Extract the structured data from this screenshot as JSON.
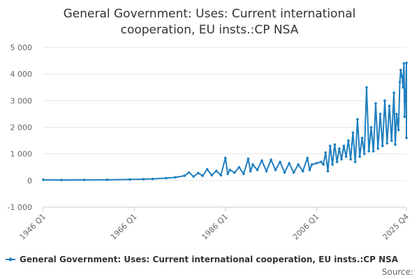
{
  "chart_data": {
    "type": "line",
    "title": [
      "General Government: Uses: Current international",
      "cooperation, EU insts.:CP NSA"
    ],
    "xlabel": "",
    "ylabel": "",
    "ylim": [
      -1000,
      5000
    ],
    "yticks": [
      5000,
      4000,
      3000,
      2000,
      1000,
      0,
      -1000
    ],
    "ytick_labels": [
      "5 000",
      "4 000",
      "3 000",
      "2 000",
      "1 000",
      "0",
      "-1 000"
    ],
    "xtick_labels": [
      "1946 Q1",
      "1966 Q1",
      "1986 Q1",
      "2006 Q1",
      "2025 Q4"
    ],
    "xtick_years": [
      1946.0,
      1966.0,
      1986.0,
      2006.0,
      2025.75
    ],
    "x_start": 1946.0,
    "x_end": 2025.75,
    "series": [
      {
        "name": "General Government: Uses: Current international cooperation, EU insts.:CP NSA",
        "color": "#1f7fbf",
        "points": [
          [
            1946.0,
            30
          ],
          [
            1950.0,
            20
          ],
          [
            1955.0,
            25
          ],
          [
            1960.0,
            30
          ],
          [
            1965.0,
            40
          ],
          [
            1968.0,
            50
          ],
          [
            1970.0,
            60
          ],
          [
            1973.0,
            90
          ],
          [
            1975.0,
            120
          ],
          [
            1977.0,
            180
          ],
          [
            1978.0,
            300
          ],
          [
            1979.0,
            150
          ],
          [
            1980.0,
            280
          ],
          [
            1981.0,
            180
          ],
          [
            1982.0,
            420
          ],
          [
            1983.0,
            200
          ],
          [
            1984.0,
            360
          ],
          [
            1985.0,
            200
          ],
          [
            1986.0,
            850
          ],
          [
            1986.5,
            250
          ],
          [
            1987.0,
            400
          ],
          [
            1988.0,
            300
          ],
          [
            1989.0,
            500
          ],
          [
            1990.0,
            250
          ],
          [
            1991.0,
            820
          ],
          [
            1991.5,
            350
          ],
          [
            1992.0,
            600
          ],
          [
            1993.0,
            400
          ],
          [
            1994.0,
            750
          ],
          [
            1995.0,
            350
          ],
          [
            1996.0,
            780
          ],
          [
            1997.0,
            400
          ],
          [
            1998.0,
            700
          ],
          [
            1999.0,
            300
          ],
          [
            2000.0,
            650
          ],
          [
            2001.0,
            300
          ],
          [
            2002.0,
            600
          ],
          [
            2003.0,
            350
          ],
          [
            2004.0,
            850
          ],
          [
            2004.5,
            400
          ],
          [
            2005.0,
            600
          ],
          [
            2006.0,
            650
          ],
          [
            2007.0,
            700
          ],
          [
            2007.5,
            600
          ],
          [
            2008.0,
            1050
          ],
          [
            2008.5,
            350
          ],
          [
            2009.0,
            1300
          ],
          [
            2009.5,
            600
          ],
          [
            2010.0,
            1350
          ],
          [
            2010.5,
            700
          ],
          [
            2011.0,
            1200
          ],
          [
            2011.5,
            800
          ],
          [
            2012.0,
            1300
          ],
          [
            2012.5,
            900
          ],
          [
            2013.0,
            1500
          ],
          [
            2013.5,
            800
          ],
          [
            2014.0,
            1800
          ],
          [
            2014.5,
            700
          ],
          [
            2015.0,
            2300
          ],
          [
            2015.5,
            900
          ],
          [
            2016.0,
            1600
          ],
          [
            2016.5,
            1000
          ],
          [
            2017.0,
            3500
          ],
          [
            2017.5,
            1100
          ],
          [
            2018.0,
            2000
          ],
          [
            2018.5,
            1100
          ],
          [
            2019.0,
            2900
          ],
          [
            2019.5,
            1200
          ],
          [
            2020.0,
            2500
          ],
          [
            2020.5,
            1300
          ],
          [
            2021.0,
            3000
          ],
          [
            2021.5,
            1400
          ],
          [
            2022.0,
            2800
          ],
          [
            2022.5,
            1500
          ],
          [
            2023.0,
            3300
          ],
          [
            2023.3,
            1350
          ],
          [
            2023.6,
            2500
          ],
          [
            2024.0,
            1900
          ],
          [
            2024.3,
            3700
          ],
          [
            2024.5,
            4150
          ],
          [
            2024.8,
            3900
          ],
          [
            2025.0,
            3500
          ],
          [
            2025.2,
            4400
          ],
          [
            2025.35,
            2400
          ],
          [
            2025.5,
            3400
          ],
          [
            2025.6,
            3100
          ],
          [
            2025.75,
            4420
          ],
          [
            2025.75,
            1600
          ]
        ]
      }
    ],
    "legend": {
      "position": "bottom",
      "label": "General Government: Uses: Current international cooperation, EU insts.:CP NSA"
    }
  },
  "source_label": "Source:"
}
